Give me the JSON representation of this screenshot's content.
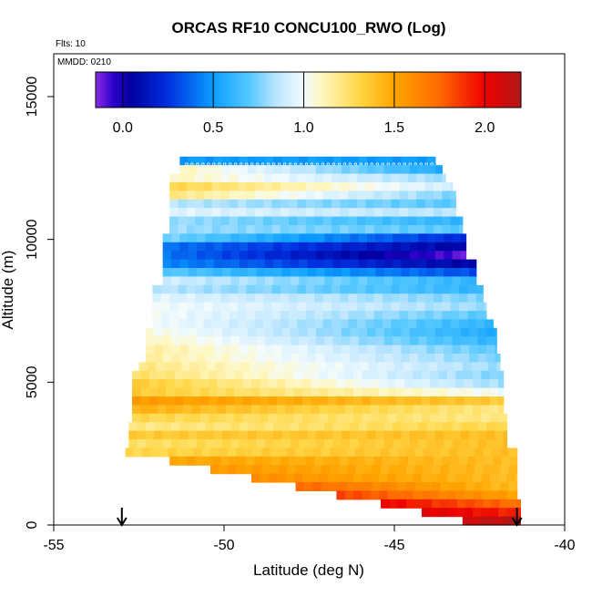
{
  "chart_data": {
    "type": "heatmap",
    "title": "ORCAS RF10 CONCU100_RWO (Log)",
    "flights_label": "Flts: 10",
    "date_label": "MMDD: 0210",
    "xlabel": "Latitude (deg N)",
    "ylabel": "Altitude (m)",
    "xlim": [
      -55,
      -40
    ],
    "ylim": [
      0,
      16500
    ],
    "x_ticks": [
      -55,
      -50,
      -45,
      -40
    ],
    "x_tick_labels": [
      "-55",
      "-50",
      "-45",
      "-40"
    ],
    "y_ticks": [
      0,
      5000,
      10000,
      15000
    ],
    "y_tick_labels": [
      "0",
      "5000",
      "10000",
      "15000"
    ],
    "colorbar": {
      "range": [
        -0.15,
        2.2
      ],
      "ticks": [
        0.0,
        0.5,
        1.0,
        1.5,
        2.0
      ],
      "tick_labels": [
        "0.0",
        "0.5",
        "1.0",
        "1.5",
        "2.0"
      ],
      "stops": [
        {
          "v": -0.15,
          "c": "#8a2be2"
        },
        {
          "v": -0.05,
          "c": "#2a00c8"
        },
        {
          "v": 0.05,
          "c": "#0000a0"
        },
        {
          "v": 0.25,
          "c": "#0030e0"
        },
        {
          "v": 0.5,
          "c": "#0a9eff"
        },
        {
          "v": 0.7,
          "c": "#55c8ff"
        },
        {
          "v": 0.85,
          "c": "#bde6ff"
        },
        {
          "v": 1.0,
          "c": "#f2fbff"
        },
        {
          "v": 1.1,
          "c": "#fff7c0"
        },
        {
          "v": 1.3,
          "c": "#ffd84a"
        },
        {
          "v": 1.5,
          "c": "#ffa500"
        },
        {
          "v": 1.75,
          "c": "#ff6a00"
        },
        {
          "v": 2.0,
          "c": "#ee0000"
        },
        {
          "v": 2.2,
          "c": "#b01818"
        }
      ]
    },
    "layers": [
      {
        "alt_min": 12600,
        "alt_max": 12900,
        "lat_min": -51.3,
        "lat_max": -43.8,
        "v_south": 0.5,
        "v_north": 0.5
      },
      {
        "alt_min": 12300,
        "alt_max": 12600,
        "lat_min": -51.3,
        "lat_max": -43.6,
        "v_south": 1.1,
        "v_north": 0.55
      },
      {
        "alt_min": 12000,
        "alt_max": 12300,
        "lat_min": -51.6,
        "lat_max": -43.5,
        "v_south": 1.1,
        "v_north": 0.8
      },
      {
        "alt_min": 11700,
        "alt_max": 12000,
        "lat_min": -51.6,
        "lat_max": -43.3,
        "v_south": 1.3,
        "v_north": 0.9
      },
      {
        "alt_min": 11400,
        "alt_max": 11700,
        "lat_min": -51.6,
        "lat_max": -43.2,
        "v_south": 1.2,
        "v_north": 0.75
      },
      {
        "alt_min": 11100,
        "alt_max": 11400,
        "lat_min": -51.6,
        "lat_max": -43.2,
        "v_south": 0.85,
        "v_north": 0.7
      },
      {
        "alt_min": 10800,
        "alt_max": 11100,
        "lat_min": -51.6,
        "lat_max": -43.2,
        "v_south": 0.95,
        "v_north": 0.85
      },
      {
        "alt_min": 10500,
        "alt_max": 10800,
        "lat_min": -51.6,
        "lat_max": -43.0,
        "v_south": 0.8,
        "v_north": 0.6
      },
      {
        "alt_min": 10200,
        "alt_max": 10500,
        "lat_min": -51.6,
        "lat_max": -43.0,
        "v_south": 0.8,
        "v_north": 0.7
      },
      {
        "alt_min": 9900,
        "alt_max": 10200,
        "lat_min": -51.8,
        "lat_max": -42.9,
        "v_south": 0.75,
        "v_north": 0.2
      },
      {
        "alt_min": 9600,
        "alt_max": 9900,
        "lat_min": -51.8,
        "lat_max": -42.9,
        "v_south": 0.4,
        "v_north": 0.05
      },
      {
        "alt_min": 9300,
        "alt_max": 9600,
        "lat_min": -51.8,
        "lat_max": -42.9,
        "v_south": 0.4,
        "v_north": -0.12
      },
      {
        "alt_min": 9000,
        "alt_max": 9300,
        "lat_min": -51.8,
        "lat_max": -42.6,
        "v_south": 0.45,
        "v_north": 0.05
      },
      {
        "alt_min": 8700,
        "alt_max": 9000,
        "lat_min": -51.8,
        "lat_max": -42.6,
        "v_south": 0.7,
        "v_north": 0.3
      },
      {
        "alt_min": 8400,
        "alt_max": 8700,
        "lat_min": -51.8,
        "lat_max": -42.6,
        "v_south": 0.9,
        "v_north": 0.6
      },
      {
        "alt_min": 8100,
        "alt_max": 8400,
        "lat_min": -52.1,
        "lat_max": -42.4,
        "v_south": 0.85,
        "v_north": 0.6
      },
      {
        "alt_min": 7800,
        "alt_max": 8100,
        "lat_min": -52.1,
        "lat_max": -42.4,
        "v_south": 0.95,
        "v_north": 0.75
      },
      {
        "alt_min": 7500,
        "alt_max": 7800,
        "lat_min": -52.1,
        "lat_max": -42.3,
        "v_south": 1.0,
        "v_north": 0.8
      },
      {
        "alt_min": 7200,
        "alt_max": 7500,
        "lat_min": -52.1,
        "lat_max": -42.3,
        "v_south": 1.0,
        "v_north": 0.7
      },
      {
        "alt_min": 6900,
        "alt_max": 7200,
        "lat_min": -52.1,
        "lat_max": -42.1,
        "v_south": 1.0,
        "v_north": 0.6
      },
      {
        "alt_min": 6600,
        "alt_max": 6900,
        "lat_min": -52.3,
        "lat_max": -42.0,
        "v_south": 1.05,
        "v_north": 0.55
      },
      {
        "alt_min": 6300,
        "alt_max": 6600,
        "lat_min": -52.3,
        "lat_max": -42.0,
        "v_south": 1.1,
        "v_north": 0.6
      },
      {
        "alt_min": 6000,
        "alt_max": 6300,
        "lat_min": -52.3,
        "lat_max": -42.0,
        "v_south": 1.15,
        "v_north": 0.7
      },
      {
        "alt_min": 5700,
        "alt_max": 6000,
        "lat_min": -52.3,
        "lat_max": -41.9,
        "v_south": 1.15,
        "v_north": 0.75
      },
      {
        "alt_min": 5400,
        "alt_max": 5700,
        "lat_min": -52.5,
        "lat_max": -41.9,
        "v_south": 1.2,
        "v_north": 0.8
      },
      {
        "alt_min": 5100,
        "alt_max": 5400,
        "lat_min": -52.7,
        "lat_max": -41.8,
        "v_south": 1.25,
        "v_north": 0.75
      },
      {
        "alt_min": 4800,
        "alt_max": 5100,
        "lat_min": -52.7,
        "lat_max": -41.8,
        "v_south": 1.35,
        "v_north": 0.8
      },
      {
        "alt_min": 4500,
        "alt_max": 4800,
        "lat_min": -52.7,
        "lat_max": -41.8,
        "v_south": 1.35,
        "v_north": 1.0
      },
      {
        "alt_min": 4200,
        "alt_max": 4500,
        "lat_min": -52.7,
        "lat_max": -41.8,
        "v_south": 1.55,
        "v_north": 1.35
      },
      {
        "alt_min": 3900,
        "alt_max": 4200,
        "lat_min": -52.7,
        "lat_max": -41.8,
        "v_south": 1.45,
        "v_north": 1.2
      },
      {
        "alt_min": 3600,
        "alt_max": 3900,
        "lat_min": -52.7,
        "lat_max": -41.7,
        "v_south": 1.3,
        "v_north": 1.2
      },
      {
        "alt_min": 3300,
        "alt_max": 3600,
        "lat_min": -52.8,
        "lat_max": -41.7,
        "v_south": 1.2,
        "v_north": 1.3
      },
      {
        "alt_min": 3000,
        "alt_max": 3300,
        "lat_min": -52.8,
        "lat_max": -41.7,
        "v_south": 1.35,
        "v_north": 1.4
      },
      {
        "alt_min": 2700,
        "alt_max": 3000,
        "lat_min": -52.8,
        "lat_max": -41.7,
        "v_south": 1.25,
        "v_north": 1.4
      },
      {
        "alt_min": 2400,
        "alt_max": 2700,
        "lat_min": -52.9,
        "lat_max": -41.4,
        "v_south": 1.3,
        "v_north": 1.4
      },
      {
        "alt_min": 2100,
        "alt_max": 2400,
        "lat_min": -51.6,
        "lat_max": -41.4,
        "v_south": 1.5,
        "v_north": 1.4
      },
      {
        "alt_min": 1800,
        "alt_max": 2100,
        "lat_min": -50.4,
        "lat_max": -41.4,
        "v_south": 1.55,
        "v_north": 1.4
      },
      {
        "alt_min": 1500,
        "alt_max": 1800,
        "lat_min": -49.2,
        "lat_max": -41.4,
        "v_south": 1.6,
        "v_north": 1.4
      },
      {
        "alt_min": 1200,
        "alt_max": 1500,
        "lat_min": -47.9,
        "lat_max": -41.4,
        "v_south": 1.75,
        "v_north": 1.4
      },
      {
        "alt_min": 900,
        "alt_max": 1200,
        "lat_min": -46.7,
        "lat_max": -41.4,
        "v_south": 1.85,
        "v_north": 1.5
      },
      {
        "alt_min": 600,
        "alt_max": 900,
        "lat_min": -45.4,
        "lat_max": -41.3,
        "v_south": 2.0,
        "v_north": 1.7
      },
      {
        "alt_min": 300,
        "alt_max": 600,
        "lat_min": -44.2,
        "lat_max": -41.3,
        "v_south": 2.05,
        "v_north": 1.9
      },
      {
        "alt_min": 0,
        "alt_max": 300,
        "lat_min": -43.0,
        "lat_max": -41.3,
        "v_south": 2.1,
        "v_north": 2.2
      }
    ],
    "markers": [
      {
        "label": "start",
        "lat": -53.0
      },
      {
        "label": "end",
        "lat": -41.4
      }
    ]
  }
}
